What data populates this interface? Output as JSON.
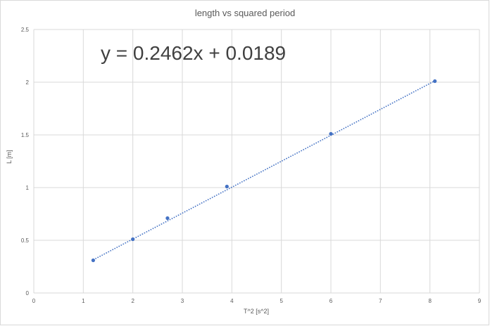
{
  "chart_data": {
    "type": "scatter",
    "title": "length vs squared period",
    "xlabel": "T^2 [s^2]",
    "ylabel": "L [m]",
    "xlim": [
      0,
      9
    ],
    "ylim": [
      0,
      2.5
    ],
    "x_ticks": [
      "0",
      "1",
      "2",
      "3",
      "4",
      "5",
      "6",
      "7",
      "8",
      "9"
    ],
    "y_ticks": [
      "0",
      "0.5",
      "1",
      "1.5",
      "2",
      "2.5"
    ],
    "grid": true,
    "legend": "none",
    "marker_color": "#4472C4",
    "trendline": {
      "type": "linear",
      "style": "dotted",
      "slope": 0.2462,
      "intercept": 0.0189,
      "equation": "y = 0.2462x + 0.0189"
    },
    "series": [
      {
        "x": [
          1.2,
          2.0,
          2.7,
          3.9,
          6.0,
          8.1
        ],
        "y": [
          0.31,
          0.51,
          0.71,
          1.01,
          1.51,
          2.01
        ]
      }
    ]
  }
}
